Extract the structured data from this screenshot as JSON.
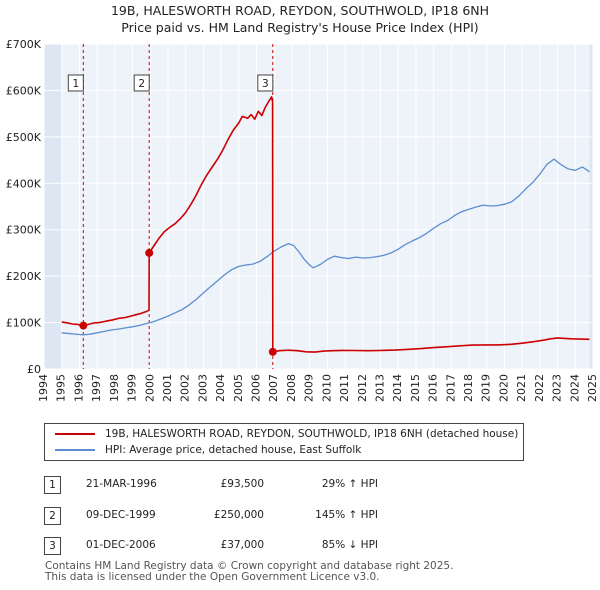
{
  "chart_data": {
    "type": "line",
    "title": "19B, HALESWORTH ROAD, REYDON, SOUTHWOLD, IP18 6NH",
    "subtitle": "Price paid vs. HM Land Registry's House Price Index (HPI)",
    "xlabel": "",
    "ylabel": "",
    "xlim": [
      1994,
      2025
    ],
    "ylim": [
      0,
      700000
    ],
    "x_ticks": [
      1994,
      1995,
      1996,
      1997,
      1998,
      1999,
      2000,
      2001,
      2002,
      2003,
      2004,
      2005,
      2006,
      2007,
      2008,
      2009,
      2010,
      2011,
      2012,
      2013,
      2014,
      2015,
      2016,
      2017,
      2018,
      2019,
      2020,
      2021,
      2022,
      2023,
      2024,
      2025
    ],
    "y_ticks": [
      {
        "value": 0,
        "label": "£0"
      },
      {
        "value": 100000,
        "label": "£100K"
      },
      {
        "value": 200000,
        "label": "£200K"
      },
      {
        "value": 300000,
        "label": "£300K"
      },
      {
        "value": 400000,
        "label": "£400K"
      },
      {
        "value": 500000,
        "label": "£500K"
      },
      {
        "value": 600000,
        "label": "£600K"
      },
      {
        "value": 700000,
        "label": "£700K"
      }
    ],
    "grid": true,
    "series": [
      {
        "name": "19B, HALESWORTH ROAD, REYDON, SOUTHWOLD, IP18 6NH (detached house)",
        "color": "#cc0000",
        "points": [
          [
            1995.0,
            101000
          ],
          [
            1995.3,
            99500
          ],
          [
            1995.6,
            97000
          ],
          [
            1995.9,
            96000
          ],
          [
            1996.22,
            93500
          ],
          [
            1996.5,
            96000
          ],
          [
            1996.8,
            99000
          ],
          [
            1997.1,
            100000
          ],
          [
            1997.5,
            103000
          ],
          [
            1997.9,
            106000
          ],
          [
            1998.2,
            109000
          ],
          [
            1998.6,
            111000
          ],
          [
            1998.9,
            114000
          ],
          [
            1999.2,
            117000
          ],
          [
            1999.5,
            120000
          ],
          [
            1999.8,
            124000
          ],
          [
            1999.93,
            127000
          ],
          [
            1999.94,
            250000
          ],
          [
            2000.2,
            265000
          ],
          [
            2000.5,
            282000
          ],
          [
            2000.8,
            296000
          ],
          [
            2001.1,
            305000
          ],
          [
            2001.4,
            313000
          ],
          [
            2001.7,
            324000
          ],
          [
            2002.0,
            337000
          ],
          [
            2002.3,
            355000
          ],
          [
            2002.6,
            375000
          ],
          [
            2002.9,
            398000
          ],
          [
            2003.2,
            418000
          ],
          [
            2003.5,
            435000
          ],
          [
            2003.8,
            452000
          ],
          [
            2004.1,
            472000
          ],
          [
            2004.4,
            495000
          ],
          [
            2004.7,
            515000
          ],
          [
            2005.0,
            530000
          ],
          [
            2005.2,
            544000
          ],
          [
            2005.5,
            540000
          ],
          [
            2005.7,
            548000
          ],
          [
            2005.9,
            538000
          ],
          [
            2006.1,
            555000
          ],
          [
            2006.3,
            546000
          ],
          [
            2006.5,
            564000
          ],
          [
            2006.7,
            577000
          ],
          [
            2006.85,
            586000
          ],
          [
            2006.91,
            575000
          ],
          [
            2006.92,
            37000
          ],
          [
            2007.3,
            39500
          ],
          [
            2007.8,
            40500
          ],
          [
            2008.3,
            39500
          ],
          [
            2008.8,
            37000
          ],
          [
            2009.3,
            36500
          ],
          [
            2009.8,
            38500
          ],
          [
            2010.3,
            39500
          ],
          [
            2010.8,
            40000
          ],
          [
            2011.5,
            39800
          ],
          [
            2012.3,
            39500
          ],
          [
            2013.0,
            39800
          ],
          [
            2013.8,
            40800
          ],
          [
            2014.5,
            42200
          ],
          [
            2015.3,
            44000
          ],
          [
            2016.0,
            46000
          ],
          [
            2016.8,
            48000
          ],
          [
            2017.5,
            50000
          ],
          [
            2018.2,
            51500
          ],
          [
            2018.9,
            52000
          ],
          [
            2019.6,
            52000
          ],
          [
            2020.3,
            53000
          ],
          [
            2021.0,
            55500
          ],
          [
            2021.6,
            58500
          ],
          [
            2022.2,
            62000
          ],
          [
            2022.6,
            65000
          ],
          [
            2023.0,
            67000
          ],
          [
            2023.4,
            66000
          ],
          [
            2023.8,
            65000
          ],
          [
            2024.3,
            64500
          ],
          [
            2024.8,
            64000
          ]
        ]
      },
      {
        "name": "HPI: Average price, detached house, East Suffolk",
        "color": "#5b8fd1",
        "points": [
          [
            1995.0,
            78000
          ],
          [
            1995.3,
            77000
          ],
          [
            1995.6,
            75500
          ],
          [
            1995.9,
            74500
          ],
          [
            1996.2,
            73500
          ],
          [
            1996.6,
            75000
          ],
          [
            1997.0,
            78000
          ],
          [
            1997.4,
            81000
          ],
          [
            1997.8,
            84000
          ],
          [
            1998.2,
            86000
          ],
          [
            1998.6,
            88500
          ],
          [
            1999.0,
            91000
          ],
          [
            1999.4,
            94000
          ],
          [
            1999.8,
            98000
          ],
          [
            2000.2,
            102000
          ],
          [
            2000.6,
            108000
          ],
          [
            2001.0,
            114000
          ],
          [
            2001.4,
            121000
          ],
          [
            2001.8,
            128000
          ],
          [
            2002.2,
            138000
          ],
          [
            2002.6,
            150000
          ],
          [
            2003.0,
            164000
          ],
          [
            2003.4,
            177000
          ],
          [
            2003.8,
            190000
          ],
          [
            2004.2,
            203000
          ],
          [
            2004.6,
            214000
          ],
          [
            2005.0,
            221000
          ],
          [
            2005.4,
            224000
          ],
          [
            2005.8,
            226000
          ],
          [
            2006.2,
            232000
          ],
          [
            2006.6,
            242000
          ],
          [
            2007.0,
            254000
          ],
          [
            2007.4,
            263000
          ],
          [
            2007.8,
            270000
          ],
          [
            2008.1,
            266000
          ],
          [
            2008.4,
            252000
          ],
          [
            2008.7,
            236000
          ],
          [
            2009.0,
            224000
          ],
          [
            2009.2,
            218000
          ],
          [
            2009.6,
            225000
          ],
          [
            2010.0,
            236000
          ],
          [
            2010.4,
            243000
          ],
          [
            2010.8,
            240000
          ],
          [
            2011.2,
            238000
          ],
          [
            2011.6,
            241000
          ],
          [
            2012.0,
            239000
          ],
          [
            2012.4,
            240000
          ],
          [
            2012.8,
            242000
          ],
          [
            2013.2,
            245000
          ],
          [
            2013.6,
            250000
          ],
          [
            2014.0,
            258000
          ],
          [
            2014.4,
            268000
          ],
          [
            2014.8,
            276000
          ],
          [
            2015.2,
            283000
          ],
          [
            2015.6,
            292000
          ],
          [
            2016.0,
            303000
          ],
          [
            2016.4,
            313000
          ],
          [
            2016.8,
            320000
          ],
          [
            2017.2,
            331000
          ],
          [
            2017.6,
            339000
          ],
          [
            2018.0,
            344000
          ],
          [
            2018.4,
            349000
          ],
          [
            2018.8,
            353000
          ],
          [
            2019.2,
            351000
          ],
          [
            2019.6,
            352000
          ],
          [
            2020.0,
            355000
          ],
          [
            2020.4,
            360000
          ],
          [
            2020.8,
            372000
          ],
          [
            2021.2,
            388000
          ],
          [
            2021.6,
            402000
          ],
          [
            2022.0,
            420000
          ],
          [
            2022.4,
            441000
          ],
          [
            2022.8,
            452000
          ],
          [
            2023.2,
            440000
          ],
          [
            2023.6,
            431000
          ],
          [
            2024.0,
            428000
          ],
          [
            2024.4,
            435000
          ],
          [
            2024.8,
            425000
          ]
        ]
      }
    ],
    "transactions": [
      {
        "num": "1",
        "x": 1996.22,
        "y": 93500,
        "date": "21-MAR-1996",
        "price": "£93,500",
        "hpi": "29% ↑ HPI"
      },
      {
        "num": "2",
        "x": 1999.94,
        "y": 250000,
        "date": "09-DEC-1999",
        "price": "£250,000",
        "hpi": "145% ↑ HPI"
      },
      {
        "num": "3",
        "x": 2006.92,
        "y": 37000,
        "date": "01-DEC-2006",
        "price": "£37,000",
        "hpi": "85% ↓ HPI"
      }
    ],
    "legend_position": "below"
  },
  "colors": {
    "property_line": "#cc0000",
    "hpi_line": "#5b8fd1",
    "plot_background": "#eef2f9",
    "shade_band": "#dde6f3",
    "grid": "#ffffff",
    "marker_line": "#cc0000"
  },
  "footer": {
    "line1": "Contains HM Land Registry data © Crown copyright and database right 2025.",
    "line2": "This data is licensed under the Open Government Licence v3.0."
  }
}
